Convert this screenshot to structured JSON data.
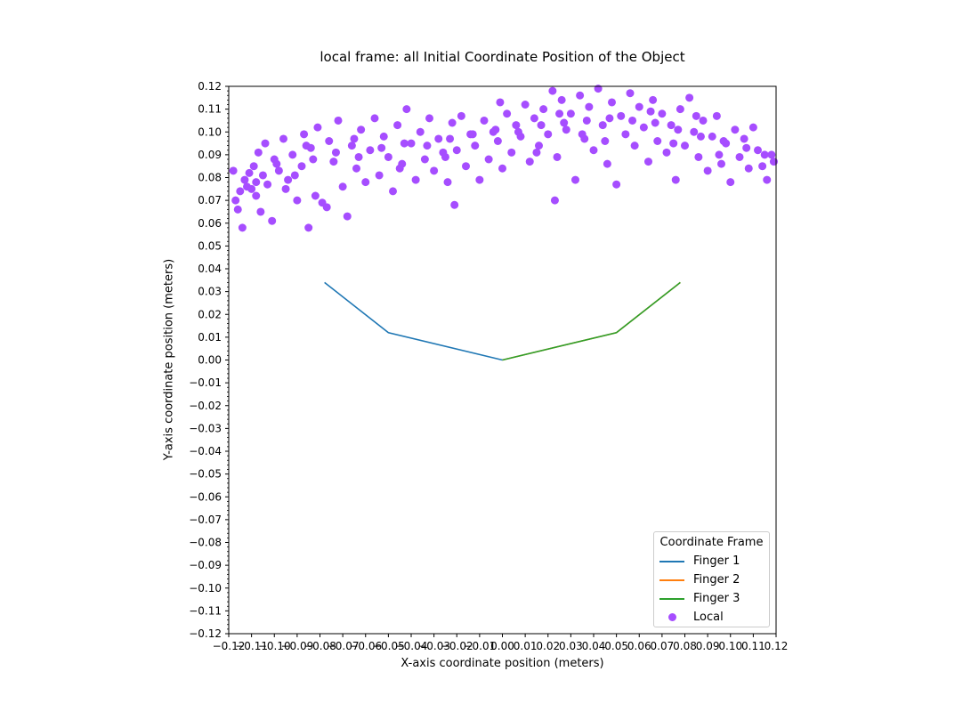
{
  "chart_data": {
    "type": "scatter",
    "title": "local frame: all Initial Coordinate Position of the Object",
    "xlabel": "X-axis coordinate position (meters)",
    "ylabel": "Y-axis coordinate position (meters)",
    "xlim": [
      -0.12,
      0.12
    ],
    "ylim": [
      -0.12,
      0.12
    ],
    "xticks": [
      "−0.12",
      "−0.11",
      "−0.10",
      "−0.09",
      "−0.08",
      "−0.07",
      "−0.06",
      "−0.05",
      "−0.04",
      "−0.03",
      "−0.02",
      "−0.01",
      "0.00",
      "0.01",
      "0.02",
      "0.03",
      "0.04",
      "0.05",
      "0.06",
      "0.07",
      "0.08",
      "0.09",
      "0.10",
      "0.11",
      "0.12"
    ],
    "yticks": [
      "−0.12",
      "−0.11",
      "−0.10",
      "−0.09",
      "−0.08",
      "−0.07",
      "−0.06",
      "−0.05",
      "−0.04",
      "−0.03",
      "−0.02",
      "−0.01",
      "0.00",
      "0.01",
      "0.02",
      "0.03",
      "0.04",
      "0.05",
      "0.06",
      "0.07",
      "0.08",
      "0.09",
      "0.10",
      "0.11",
      "0.12"
    ],
    "grid": false,
    "legend": {
      "title": "Coordinate Frame",
      "placement": "lower right",
      "entries": [
        "Finger 1",
        "Finger 2",
        "Finger 3",
        "Local"
      ]
    },
    "lines": [
      {
        "name": "Finger 1",
        "color": "#1f77b4",
        "x": [
          0.0,
          -0.05,
          -0.078
        ],
        "y": [
          0.0,
          0.012,
          0.034
        ]
      },
      {
        "name": "Finger 2",
        "color": "#ff7f0e",
        "x": [
          0.0,
          0.05,
          0.078
        ],
        "y": [
          0.0,
          0.012,
          0.034
        ]
      },
      {
        "name": "Finger 3",
        "color": "#2ca02c",
        "x": [
          0.0,
          0.05,
          0.078
        ],
        "y": [
          0.0,
          0.012,
          0.034
        ]
      }
    ],
    "scatter": {
      "name": "Local",
      "color": "#a64dff",
      "points": [
        [
          -0.118,
          0.083
        ],
        [
          -0.117,
          0.07
        ],
        [
          -0.116,
          0.066
        ],
        [
          -0.114,
          0.058
        ],
        [
          -0.113,
          0.079
        ],
        [
          -0.112,
          0.076
        ],
        [
          -0.111,
          0.082
        ],
        [
          -0.11,
          0.075
        ],
        [
          -0.109,
          0.085
        ],
        [
          -0.108,
          0.072
        ],
        [
          -0.107,
          0.091
        ],
        [
          -0.106,
          0.065
        ],
        [
          -0.105,
          0.081
        ],
        [
          -0.104,
          0.095
        ],
        [
          -0.103,
          0.077
        ],
        [
          -0.101,
          0.061
        ],
        [
          -0.1,
          0.088
        ],
        [
          -0.098,
          0.083
        ],
        [
          -0.096,
          0.097
        ],
        [
          -0.094,
          0.079
        ],
        [
          -0.092,
          0.09
        ],
        [
          -0.09,
          0.07
        ],
        [
          -0.088,
          0.085
        ],
        [
          -0.087,
          0.099
        ],
        [
          -0.085,
          0.058
        ],
        [
          -0.084,
          0.093
        ],
        [
          -0.082,
          0.072
        ],
        [
          -0.081,
          0.102
        ],
        [
          -0.079,
          0.069
        ],
        [
          -0.077,
          0.067
        ],
        [
          -0.076,
          0.096
        ],
        [
          -0.074,
          0.087
        ],
        [
          -0.072,
          0.105
        ],
        [
          -0.07,
          0.076
        ],
        [
          -0.068,
          0.063
        ],
        [
          -0.066,
          0.094
        ],
        [
          -0.064,
          0.084
        ],
        [
          -0.062,
          0.101
        ],
        [
          -0.06,
          0.078
        ],
        [
          -0.058,
          0.092
        ],
        [
          -0.056,
          0.106
        ],
        [
          -0.054,
          0.081
        ],
        [
          -0.052,
          0.098
        ],
        [
          -0.05,
          0.089
        ],
        [
          -0.048,
          0.074
        ],
        [
          -0.046,
          0.103
        ],
        [
          -0.044,
          0.086
        ],
        [
          -0.042,
          0.11
        ],
        [
          -0.04,
          0.095
        ],
        [
          -0.038,
          0.079
        ],
        [
          -0.036,
          0.1
        ],
        [
          -0.034,
          0.088
        ],
        [
          -0.032,
          0.106
        ],
        [
          -0.03,
          0.083
        ],
        [
          -0.028,
          0.097
        ],
        [
          -0.026,
          0.091
        ],
        [
          -0.024,
          0.078
        ],
        [
          -0.022,
          0.104
        ],
        [
          -0.021,
          0.068
        ],
        [
          -0.02,
          0.092
        ],
        [
          -0.018,
          0.107
        ],
        [
          -0.016,
          0.085
        ],
        [
          -0.014,
          0.099
        ],
        [
          -0.012,
          0.094
        ],
        [
          -0.01,
          0.079
        ],
        [
          -0.008,
          0.105
        ],
        [
          -0.006,
          0.088
        ],
        [
          -0.004,
          0.1
        ],
        [
          -0.002,
          0.096
        ],
        [
          -0.001,
          0.113
        ],
        [
          0.0,
          0.084
        ],
        [
          0.002,
          0.108
        ],
        [
          0.004,
          0.091
        ],
        [
          0.006,
          0.103
        ],
        [
          0.008,
          0.098
        ],
        [
          0.01,
          0.112
        ],
        [
          0.012,
          0.087
        ],
        [
          0.014,
          0.106
        ],
        [
          0.016,
          0.094
        ],
        [
          0.018,
          0.11
        ],
        [
          0.02,
          0.099
        ],
        [
          0.022,
          0.118
        ],
        [
          0.023,
          0.07
        ],
        [
          0.024,
          0.089
        ],
        [
          0.026,
          0.114
        ],
        [
          0.028,
          0.101
        ],
        [
          0.03,
          0.108
        ],
        [
          0.032,
          0.079
        ],
        [
          0.034,
          0.116
        ],
        [
          0.036,
          0.097
        ],
        [
          0.038,
          0.111
        ],
        [
          0.04,
          0.092
        ],
        [
          0.042,
          0.119
        ],
        [
          0.044,
          0.103
        ],
        [
          0.046,
          0.086
        ],
        [
          0.048,
          0.113
        ],
        [
          0.05,
          0.077
        ],
        [
          0.052,
          0.107
        ],
        [
          0.054,
          0.099
        ],
        [
          0.056,
          0.117
        ],
        [
          0.058,
          0.094
        ],
        [
          0.06,
          0.111
        ],
        [
          0.062,
          0.102
        ],
        [
          0.064,
          0.087
        ],
        [
          0.066,
          0.114
        ],
        [
          0.068,
          0.096
        ],
        [
          0.07,
          0.108
        ],
        [
          0.072,
          0.091
        ],
        [
          0.074,
          0.103
        ],
        [
          0.076,
          0.079
        ],
        [
          0.078,
          0.11
        ],
        [
          0.08,
          0.094
        ],
        [
          0.082,
          0.115
        ],
        [
          0.084,
          0.1
        ],
        [
          0.086,
          0.089
        ],
        [
          0.088,
          0.105
        ],
        [
          0.09,
          0.083
        ],
        [
          0.092,
          0.098
        ],
        [
          0.094,
          0.107
        ],
        [
          0.096,
          0.086
        ],
        [
          0.098,
          0.095
        ],
        [
          0.1,
          0.078
        ],
        [
          0.102,
          0.101
        ],
        [
          0.104,
          0.089
        ],
        [
          0.106,
          0.097
        ],
        [
          0.108,
          0.084
        ],
        [
          0.11,
          0.102
        ],
        [
          0.112,
          0.092
        ],
        [
          0.114,
          0.085
        ],
        [
          0.116,
          0.079
        ],
        [
          0.118,
          0.09
        ],
        [
          0.119,
          0.087
        ],
        [
          -0.115,
          0.074
        ],
        [
          -0.108,
          0.078
        ],
        [
          -0.099,
          0.086
        ],
        [
          -0.091,
          0.081
        ],
        [
          -0.083,
          0.088
        ],
        [
          -0.073,
          0.091
        ],
        [
          -0.063,
          0.089
        ],
        [
          -0.053,
          0.093
        ],
        [
          -0.043,
          0.095
        ],
        [
          -0.033,
          0.094
        ],
        [
          -0.023,
          0.097
        ],
        [
          -0.013,
          0.099
        ],
        [
          -0.003,
          0.101
        ],
        [
          0.007,
          0.1
        ],
        [
          0.017,
          0.103
        ],
        [
          0.027,
          0.104
        ],
        [
          0.037,
          0.105
        ],
        [
          0.047,
          0.106
        ],
        [
          0.057,
          0.105
        ],
        [
          0.067,
          0.104
        ],
        [
          0.077,
          0.101
        ],
        [
          0.087,
          0.098
        ],
        [
          0.097,
          0.096
        ],
        [
          0.107,
          0.093
        ],
        [
          0.115,
          0.09
        ],
        [
          -0.095,
          0.075
        ],
        [
          -0.045,
          0.084
        ],
        [
          0.015,
          0.091
        ],
        [
          0.045,
          0.096
        ],
        [
          0.075,
          0.095
        ],
        [
          0.095,
          0.09
        ],
        [
          -0.065,
          0.097
        ],
        [
          -0.025,
          0.089
        ],
        [
          0.025,
          0.108
        ],
        [
          0.065,
          0.109
        ],
        [
          0.085,
          0.107
        ],
        [
          -0.086,
          0.094
        ],
        [
          0.035,
          0.099
        ]
      ]
    }
  }
}
